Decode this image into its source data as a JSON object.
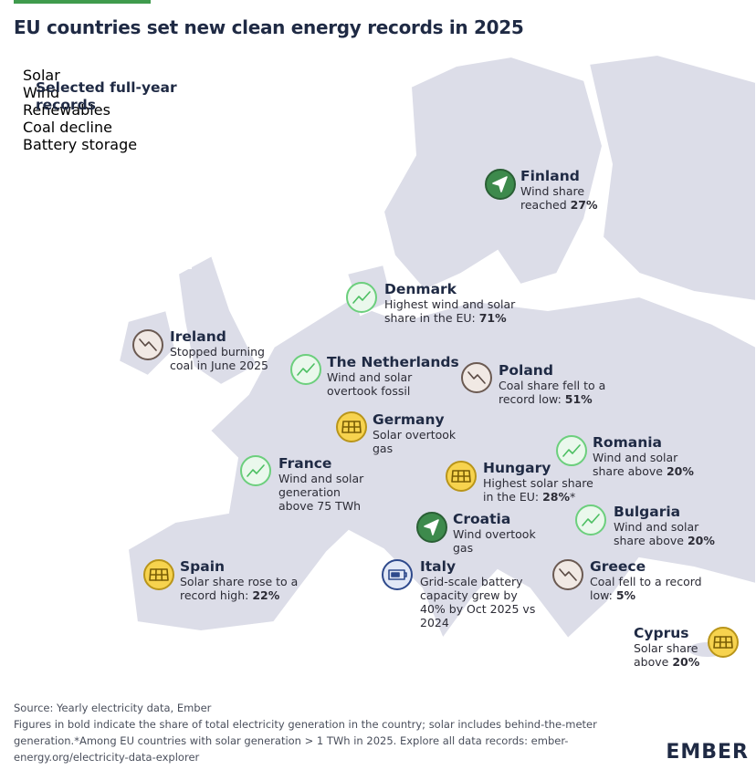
{
  "header": {
    "title": "EU countries set new clean energy records in 2025"
  },
  "legend": {
    "title": "Selected full-year records",
    "items": [
      {
        "label": "Solar",
        "icon": "solar"
      },
      {
        "label": "Wind",
        "icon": "wind"
      },
      {
        "label": "Renewables",
        "icon": "renewables"
      },
      {
        "label": "Coal decline",
        "icon": "coal"
      },
      {
        "label": "Battery storage",
        "icon": "battery"
      }
    ]
  },
  "records": [
    {
      "country": "Finland",
      "icon": "wind",
      "text": "Wind share reached ",
      "highlight": "27%"
    },
    {
      "country": "Denmark",
      "icon": "renewables",
      "text": "Highest wind and solar share in the EU: ",
      "highlight": "71%"
    },
    {
      "country": "Ireland",
      "icon": "coal",
      "text": "Stopped burning coal in June 2025"
    },
    {
      "country": "The Netherlands",
      "icon": "renewables",
      "text": "Wind and solar overtook fossil"
    },
    {
      "country": "Poland",
      "icon": "coal",
      "text": "Coal share fell to a record low: ",
      "highlight": "51%"
    },
    {
      "country": "Germany",
      "icon": "solar",
      "text": "Solar overtook gas"
    },
    {
      "country": "Romania",
      "icon": "renewables",
      "text": "Wind and solar share above ",
      "highlight": "20%"
    },
    {
      "country": "France",
      "icon": "renewables",
      "text": "Wind and solar generation above 75 TWh"
    },
    {
      "country": "Hungary",
      "icon": "solar",
      "text": "Highest solar share in the EU: ",
      "highlight": "28%",
      "suffix": "*"
    },
    {
      "country": "Bulgaria",
      "icon": "renewables",
      "text": "Wind and solar share above ",
      "highlight": "20%"
    },
    {
      "country": "Croatia",
      "icon": "wind",
      "text": "Wind overtook gas"
    },
    {
      "country": "Spain",
      "icon": "solar",
      "text": "Solar share rose to a record high: ",
      "highlight": "22%"
    },
    {
      "country": "Italy",
      "icon": "battery",
      "text": "Grid-scale battery capacity grew by 40% by Oct 2025 vs 2024"
    },
    {
      "country": "Greece",
      "icon": "coal",
      "text": "Coal fell to a record low: ",
      "highlight": "5%"
    },
    {
      "country": "Cyprus",
      "icon": "solar",
      "text": "Solar share above ",
      "highlight": "20%"
    }
  ],
  "footer": {
    "source": "Source: Yearly electricity data, Ember",
    "note": "Figures in bold indicate the share of total electricity generation in the country; solar includes behind-the-meter generation.*Among EU countries with solar generation > 1 TWh in 2025. Explore all data records: ember-energy.org/electricity-data-explorer",
    "logo": "EMBER"
  }
}
